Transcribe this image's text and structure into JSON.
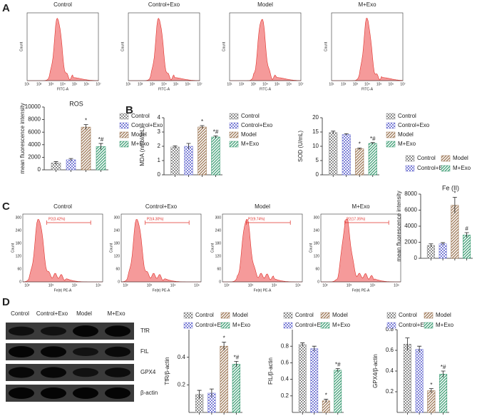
{
  "panel_letters": [
    "A",
    "B",
    "C",
    "D"
  ],
  "flow_a": {
    "titles": [
      "Control",
      "Control+Exo",
      "Model",
      "M+Exo"
    ],
    "x_label": "FITC-A",
    "y_label": "Count",
    "x_ticks": [
      "10¹",
      "10²",
      "10³",
      "10⁴",
      "10⁵",
      "10⁶",
      "10⁷"
    ]
  },
  "flow_c": {
    "titles": [
      "Control",
      "Control+Exo",
      "Model",
      "M+Exo"
    ],
    "gates": [
      "P2(3.42%)",
      "P2(4.30%)",
      "P2(9.74%)",
      "P2(17.35%)"
    ],
    "x_label": "Fe(Ⅱ) PE-A",
    "y_label": "Count",
    "x_ticks": [
      "10²",
      "10³",
      "10⁴",
      "10⁵"
    ],
    "y_ticks": [
      "0",
      "60",
      "120",
      "180",
      "240",
      "300"
    ]
  },
  "blot": {
    "lanes": [
      "Control",
      "Control+Exo",
      "Model",
      "M+Exo"
    ],
    "proteins": [
      "TfR",
      "FtL",
      "GPX4",
      "β-actin"
    ]
  },
  "chart_data": [
    {
      "type": "bar",
      "title": "ROS",
      "y_label": "mean fluorescence intensity",
      "categories": [
        "Control",
        "Control+Exo",
        "Model",
        "M+Exo"
      ],
      "values": [
        1100,
        1600,
        6800,
        3700
      ],
      "errors": [
        200,
        200,
        400,
        500
      ],
      "annotations": [
        null,
        null,
        "*",
        "*#"
      ],
      "colors": [
        "#8c8c8c",
        "#7b7fd6",
        "#9a7350",
        "#3a9c72"
      ],
      "patterns": [
        "checker",
        "checker",
        "hatch",
        "hatch"
      ],
      "ylim": [
        0,
        10000
      ],
      "yticks": [
        0,
        2000,
        4000,
        6000,
        8000,
        10000
      ]
    },
    {
      "type": "bar",
      "y_label": "MDA (nmol/mL)",
      "categories": [
        "Control",
        "Control+Exo",
        "Model",
        "M+Exo"
      ],
      "values": [
        1.95,
        2.0,
        3.35,
        2.65
      ],
      "errors": [
        0.08,
        0.2,
        0.1,
        0.08
      ],
      "annotations": [
        null,
        null,
        "*",
        "*#"
      ],
      "colors": [
        "#8c8c8c",
        "#7b7fd6",
        "#9a7350",
        "#3a9c72"
      ],
      "patterns": [
        "checker",
        "checker",
        "hatch",
        "hatch"
      ],
      "ylim": [
        0,
        4
      ],
      "yticks": [
        0,
        1,
        2,
        3,
        4
      ]
    },
    {
      "type": "bar",
      "y_label": "SOD (U/mL)",
      "categories": [
        "Control",
        "Control+Exo",
        "Model",
        "M+Exo"
      ],
      "values": [
        14.8,
        14.1,
        9.1,
        11.0
      ],
      "errors": [
        0.5,
        0.3,
        0.3,
        0.3
      ],
      "annotations": [
        null,
        null,
        "*",
        "*#"
      ],
      "colors": [
        "#8c8c8c",
        "#7b7fd6",
        "#9a7350",
        "#3a9c72"
      ],
      "patterns": [
        "checker",
        "checker",
        "hatch",
        "hatch"
      ],
      "ylim": [
        0,
        20
      ],
      "yticks": [
        0,
        5,
        10,
        15,
        20
      ]
    },
    {
      "type": "bar",
      "title": "Fe (II)",
      "y_label": "mean fluorescence intensity",
      "categories": [
        "Control",
        "Control+Exo",
        "Model",
        "M+Exo"
      ],
      "values": [
        1600,
        1800,
        6600,
        2900
      ],
      "errors": [
        200,
        150,
        1000,
        300
      ],
      "annotations": [
        null,
        null,
        "*",
        "#"
      ],
      "colors": [
        "#8c8c8c",
        "#7b7fd6",
        "#9a7350",
        "#3a9c72"
      ],
      "patterns": [
        "checker",
        "checker",
        "hatch",
        "hatch"
      ],
      "ylim": [
        0,
        8000
      ],
      "yticks": [
        0,
        2000,
        4000,
        6000,
        8000
      ]
    },
    {
      "type": "bar",
      "y_label": "TfR/β-actin",
      "categories": [
        "Control",
        "Control+Exo",
        "Model",
        "M+Exo"
      ],
      "values": [
        0.13,
        0.14,
        0.48,
        0.35
      ],
      "errors": [
        0.03,
        0.03,
        0.03,
        0.02
      ],
      "annotations": [
        null,
        null,
        "*",
        "*#"
      ],
      "colors": [
        "#8c8c8c",
        "#7b7fd6",
        "#9a7350",
        "#3a9c72"
      ],
      "patterns": [
        "checker",
        "checker",
        "hatch",
        "hatch"
      ],
      "ylim": [
        0,
        0.6
      ],
      "yticks": [
        0.2,
        0.4
      ]
    },
    {
      "type": "bar",
      "y_label": "FtL/β-actin",
      "categories": [
        "Control",
        "Control+Exo",
        "Model",
        "M+Exo"
      ],
      "values": [
        0.82,
        0.77,
        0.14,
        0.51
      ],
      "errors": [
        0.02,
        0.03,
        0.02,
        0.02
      ],
      "annotations": [
        null,
        null,
        "*",
        "*#"
      ],
      "colors": [
        "#8c8c8c",
        "#7b7fd6",
        "#9a7350",
        "#3a9c72"
      ],
      "patterns": [
        "checker",
        "checker",
        "hatch",
        "hatch"
      ],
      "ylim": [
        0,
        1.0
      ],
      "yticks": [
        0.2,
        0.4,
        0.6,
        0.8
      ]
    },
    {
      "type": "bar",
      "y_label": "GPX4/β-actin",
      "categories": [
        "Control",
        "Control+Exo",
        "Model",
        "M+Exo"
      ],
      "values": [
        0.66,
        0.61,
        0.21,
        0.37
      ],
      "errors": [
        0.06,
        0.03,
        0.02,
        0.03
      ],
      "annotations": [
        null,
        null,
        "*",
        "*#"
      ],
      "colors": [
        "#8c8c8c",
        "#7b7fd6",
        "#9a7350",
        "#3a9c72"
      ],
      "patterns": [
        "checker",
        "checker",
        "hatch",
        "hatch"
      ],
      "ylim": [
        0,
        0.8
      ],
      "yticks": [
        0.2,
        0.4,
        0.6,
        0.8
      ]
    }
  ]
}
